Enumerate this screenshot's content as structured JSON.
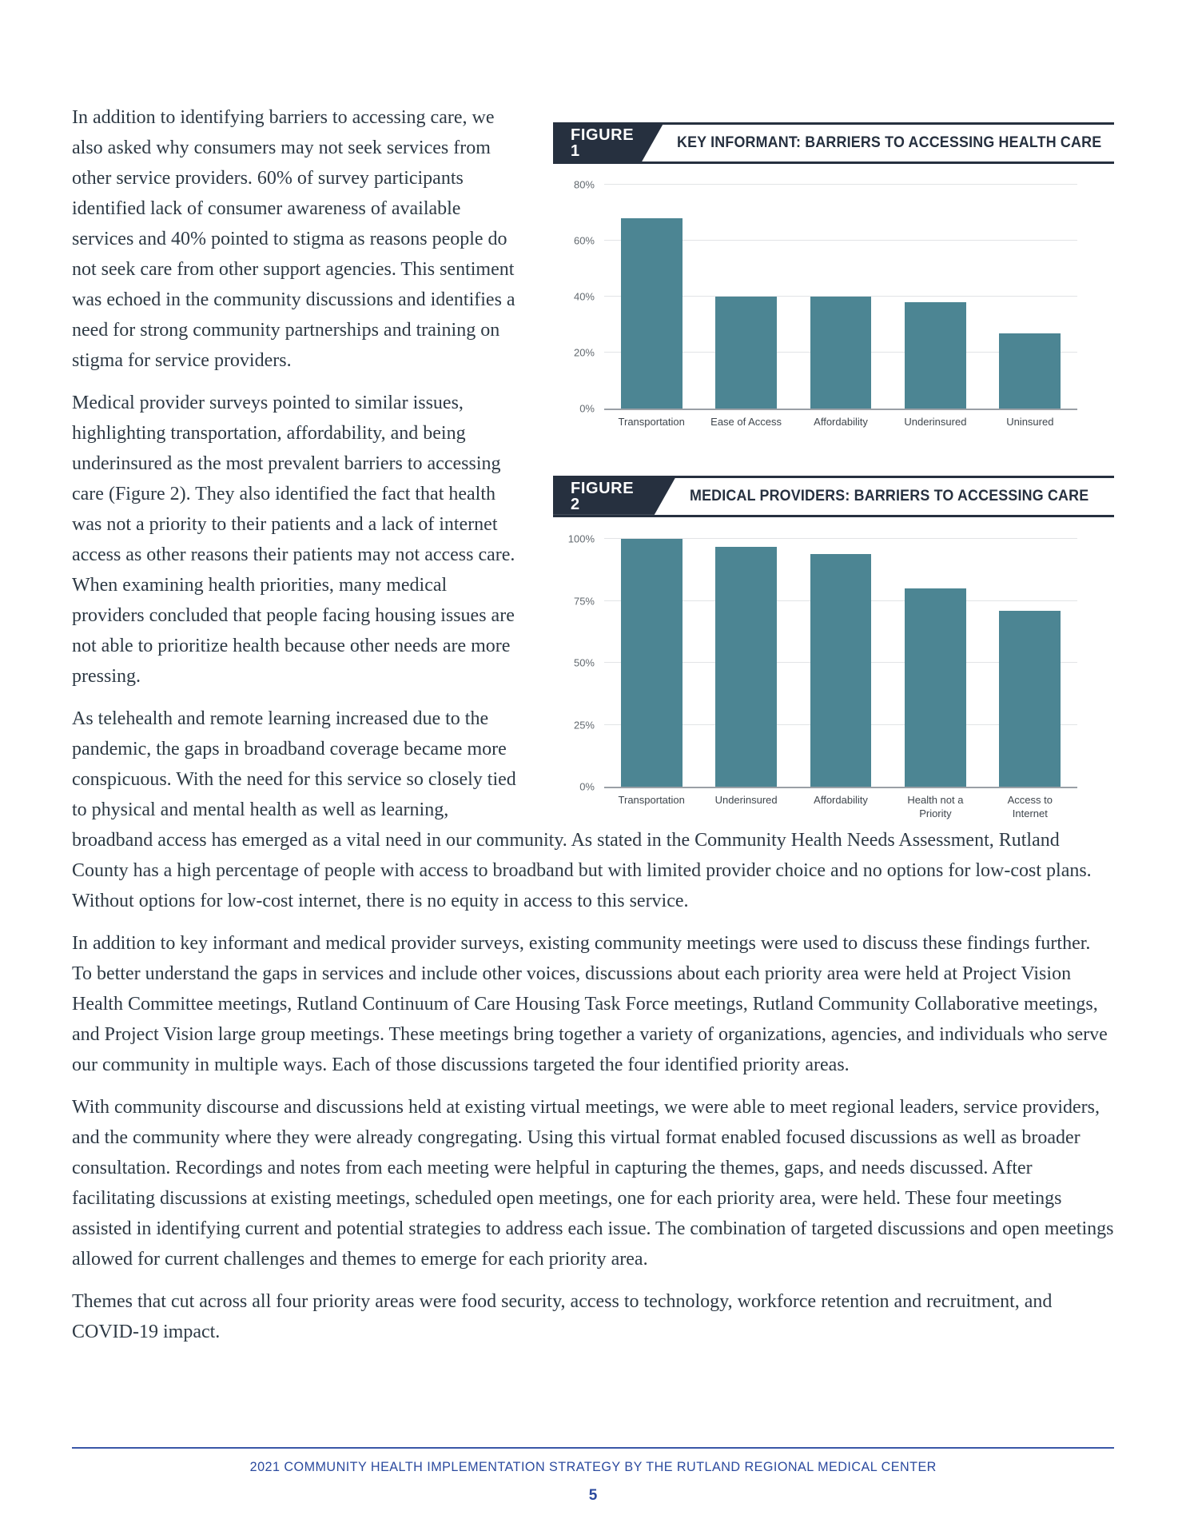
{
  "figures": [
    {
      "badge": "FIGURE 1",
      "title": "KEY INFORMANT: BARRIERS TO ACCESSING HEALTH CARE"
    },
    {
      "badge": "FIGURE 2",
      "title": "MEDICAL PROVIDERS: BARRIERS TO ACCESSING CARE"
    }
  ],
  "chart_data": [
    {
      "type": "bar",
      "title": "KEY INFORMANT: BARRIERS TO ACCESSING HEALTH CARE",
      "categories": [
        "Transportation",
        "Ease of Access",
        "Affordability",
        "Underinsured",
        "Uninsured"
      ],
      "values": [
        68,
        40,
        40,
        38,
        27
      ],
      "unit": "%",
      "xlabel": "",
      "ylabel": "",
      "ylim": [
        0,
        80
      ],
      "yticks": [
        0,
        20,
        40,
        60,
        80
      ],
      "grid": true,
      "legend": "none",
      "bar_color": "#4c8593"
    },
    {
      "type": "bar",
      "title": "MEDICAL PROVIDERS: BARRIERS TO ACCESSING CARE",
      "categories": [
        "Transportation",
        "Underinsured",
        "Affordability",
        "Health not a Priority",
        "Access to Internet"
      ],
      "values": [
        100,
        97,
        94,
        80,
        71
      ],
      "unit": "%",
      "xlabel": "",
      "ylabel": "",
      "ylim": [
        0,
        100
      ],
      "yticks": [
        0,
        25,
        50,
        75,
        100
      ],
      "grid": true,
      "legend": "none",
      "bar_color": "#4c8593"
    }
  ],
  "paragraphs": {
    "p1": "In addition to identifying barriers to accessing care, we also asked why consumers may not seek services from other service providers. 60% of survey participants identified lack of consumer awareness of available services and 40% pointed to stigma as reasons people do not seek care from other support agencies. This sentiment was echoed in the community discussions and identifies a need for strong community partnerships and training on stigma for service providers.",
    "p2": "Medical provider surveys pointed to similar issues, highlighting transportation, affordability, and being underinsured as the most prevalent barriers to accessing care (Figure 2). They also identified the fact that health was not a priority to their patients and a lack of internet access as other reasons their patients may not access care. When examining health priorities, many medical providers concluded that people facing housing issues are not able to prioritize health because other needs are more pressing.",
    "p3": "As telehealth and remote learning increased due to the pandemic, the gaps in broadband coverage became more conspicuous. With the need for this service so closely tied to physical and mental health as well as learning, broadband access has emerged as a vital need in our community. As stated in the Community Health Needs Assessment, Rutland County has a high percentage of people with access to broadband but with limited provider choice and no options for low-cost plans. Without options for low-cost internet, there is no equity in access to this service.",
    "p4": "In addition to key informant and medical provider surveys, existing community meetings were used to discuss these findings further. To better understand the gaps in services and include other voices, discussions about each priority area were held at Project Vision Health Committee meetings, Rutland Continuum of Care Housing Task Force meetings, Rutland Community Collaborative meetings, and Project Vision large group meetings. These meetings bring together a variety of organizations, agencies, and individuals who serve our community in multiple ways. Each of those discussions targeted the four identified priority areas.",
    "p5": "With community discourse and discussions held at existing virtual meetings, we were able to meet regional leaders, service providers, and the community where they were already congregating. Using this virtual format enabled focused discussions as well as broader consultation. Recordings and notes from each meeting were helpful in capturing the themes, gaps, and needs discussed. After facilitating discussions at existing meetings, scheduled open meetings, one for each priority area, were held. These four meetings assisted in identifying current and potential strategies to address each issue. The combination of targeted discussions and open meetings allowed for current challenges and themes to emerge for each priority area.",
    "p6": "Themes that cut across all four priority areas were food security, access to technology, workforce retention and recruitment, and COVID-19 impact."
  },
  "footer": {
    "title": "2021 COMMUNITY HEALTH IMPLEMENTATION STRATEGY BY THE RUTLAND REGIONAL MEDICAL CENTER",
    "page_number": "5"
  },
  "colors": {
    "bar": "#4c8593",
    "badge_background": "#26303f",
    "figure_title_text": "#26303f",
    "body_text": "#2e3a45",
    "footer_blue": "#2b4a9e",
    "gridline": "#e2e4e6",
    "axis_line": "#9aa0a6",
    "tick_label": "#62696f"
  }
}
